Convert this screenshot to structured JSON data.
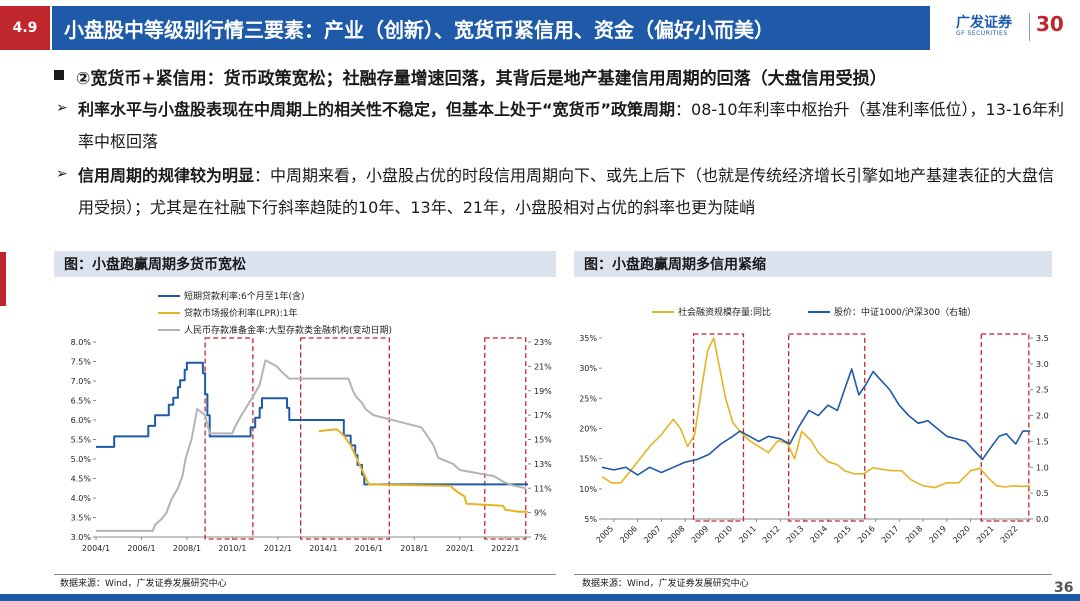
{
  "header": {
    "section_num": "4.9",
    "title": "小盘股中等级别行情三要素：产业（创新）、宽货币紧信用、资金（偏好小而美）",
    "logo_text": "广发证券",
    "logo_sub": "GF SECURITIES",
    "logo_30": "30"
  },
  "section": {
    "heading": "②宽货币+紧信用：货币政策宽松；社融存量增速回落，其背后是地产基建信用周期的回落（大盘信用受损）",
    "p1_bold": "利率水平与小盘股表现在中周期上的相关性不稳定，但基本上处于“宽货币”政策周期",
    "p1_rest": "：08-10年利率中枢抬升（基准利率低位），13-16年利率中枢回落",
    "p2_bold": "信用周期的规律较为明显",
    "p2_rest": "：中周期来看，小盘股占优的时段信用周期向下、或先上后下（也就是传统经济增长引擎如地产基建表征的大盘信用受损）；尤其是在社融下行斜率趋陡的10年、13年、21年，小盘股相对占优的斜率也更为陡峭"
  },
  "left_panel": {
    "title": "图：小盘跑赢周期多货币宽松",
    "source": "数据来源：Wind，广发证券发展研究中心"
  },
  "right_panel": {
    "title": "图：小盘跑赢周期多信用紧缩",
    "source": "数据来源：Wind，广发证券发展研究中心"
  },
  "page_number": "36",
  "colors": {
    "blue": "#1e5aa8",
    "gold": "#e6b422",
    "gray": "#b3b3b3",
    "red": "#c0272d"
  },
  "chart_data": [
    {
      "type": "line",
      "title": "",
      "legend": [
        "短期贷款利率:6个月至1年(含)",
        "贷款市场报价利率(LPR):1年",
        "人民币存款准备金率:大型存款类金融机构(变动日期)"
      ],
      "legend_placement": "top-left",
      "left_axis": {
        "min": 3.0,
        "max": 8.0,
        "ticks": [
          "3.0%",
          "3.5%",
          "4.0%",
          "4.5%",
          "5.0%",
          "5.5%",
          "6.0%",
          "6.5%",
          "7.0%",
          "7.5%",
          "8.0%"
        ]
      },
      "right_axis": {
        "min": 7,
        "max": 23,
        "ticks": [
          "7%",
          "9%",
          "11%",
          "13%",
          "15%",
          "17%",
          "19%",
          "21%",
          "23%"
        ]
      },
      "x_axis": {
        "min": 2004,
        "max": 2023,
        "ticks": [
          "2004/1",
          "2006/1",
          "2008/1",
          "2010/1",
          "2012/1",
          "2014/1",
          "2016/1",
          "2018/1",
          "2020/1",
          "2022/1"
        ]
      },
      "highlight_periods": [
        [
          2008.8,
          2010.9
        ],
        [
          2013.0,
          2016.9
        ],
        [
          2021.1,
          2022.9
        ]
      ],
      "series": [
        {
          "name": "短期贷款利率:6个月至1年(含)",
          "axis": "left",
          "color": "#1e5aa8",
          "points": [
            [
              2004.0,
              5.31
            ],
            [
              2004.8,
              5.31
            ],
            [
              2004.8,
              5.58
            ],
            [
              2006.3,
              5.58
            ],
            [
              2006.3,
              5.85
            ],
            [
              2006.6,
              5.85
            ],
            [
              2006.6,
              6.12
            ],
            [
              2007.2,
              6.12
            ],
            [
              2007.2,
              6.39
            ],
            [
              2007.4,
              6.39
            ],
            [
              2007.4,
              6.57
            ],
            [
              2007.6,
              6.57
            ],
            [
              2007.6,
              6.84
            ],
            [
              2007.7,
              6.84
            ],
            [
              2007.7,
              7.02
            ],
            [
              2007.9,
              7.02
            ],
            [
              2007.9,
              7.29
            ],
            [
              2008.0,
              7.29
            ],
            [
              2008.0,
              7.47
            ],
            [
              2008.7,
              7.47
            ],
            [
              2008.7,
              7.2
            ],
            [
              2008.8,
              7.2
            ],
            [
              2008.8,
              6.66
            ],
            [
              2008.9,
              6.66
            ],
            [
              2008.9,
              6.12
            ],
            [
              2009.0,
              6.12
            ],
            [
              2009.0,
              5.58
            ],
            [
              2010.8,
              5.58
            ],
            [
              2010.8,
              5.81
            ],
            [
              2011.0,
              5.81
            ],
            [
              2011.0,
              6.06
            ],
            [
              2011.2,
              6.06
            ],
            [
              2011.2,
              6.31
            ],
            [
              2011.3,
              6.31
            ],
            [
              2011.3,
              6.56
            ],
            [
              2012.4,
              6.56
            ],
            [
              2012.4,
              6.31
            ],
            [
              2012.5,
              6.31
            ],
            [
              2012.5,
              6.0
            ],
            [
              2014.9,
              6.0
            ],
            [
              2014.9,
              5.6
            ],
            [
              2015.2,
              5.6
            ],
            [
              2015.2,
              5.35
            ],
            [
              2015.4,
              5.35
            ],
            [
              2015.4,
              5.1
            ],
            [
              2015.5,
              5.1
            ],
            [
              2015.5,
              4.85
            ],
            [
              2015.7,
              4.85
            ],
            [
              2015.7,
              4.6
            ],
            [
              2015.8,
              4.6
            ],
            [
              2015.8,
              4.35
            ],
            [
              2023.0,
              4.35
            ]
          ]
        },
        {
          "name": "贷款市场报价利率(LPR):1年",
          "axis": "left",
          "color": "#e6b422",
          "points": [
            [
              2013.8,
              5.71
            ],
            [
              2014.2,
              5.74
            ],
            [
              2014.6,
              5.76
            ],
            [
              2014.9,
              5.6
            ],
            [
              2015.2,
              5.35
            ],
            [
              2015.4,
              5.1
            ],
            [
              2015.6,
              4.85
            ],
            [
              2015.8,
              4.6
            ],
            [
              2016.0,
              4.35
            ],
            [
              2019.6,
              4.31
            ],
            [
              2019.7,
              4.25
            ],
            [
              2019.9,
              4.15
            ],
            [
              2020.2,
              4.05
            ],
            [
              2020.3,
              3.85
            ],
            [
              2021.9,
              3.8
            ],
            [
              2022.0,
              3.7
            ],
            [
              2022.6,
              3.65
            ],
            [
              2023.0,
              3.65
            ]
          ]
        },
        {
          "name": "人民币存款准备金率:大型存款类金融机构(变动日期)",
          "axis": "right",
          "color": "#b3b3b3",
          "points": [
            [
              2004.0,
              7.5
            ],
            [
              2006.5,
              7.5
            ],
            [
              2006.6,
              8.0
            ],
            [
              2006.9,
              8.5
            ],
            [
              2007.1,
              9.0
            ],
            [
              2007.3,
              10.0
            ],
            [
              2007.6,
              11.0
            ],
            [
              2007.8,
              12.0
            ],
            [
              2007.95,
              13.5
            ],
            [
              2008.2,
              15.0
            ],
            [
              2008.45,
              17.5
            ],
            [
              2008.8,
              17.0
            ],
            [
              2009.0,
              15.5
            ],
            [
              2010.0,
              15.5
            ],
            [
              2010.1,
              16.0
            ],
            [
              2010.4,
              17.0
            ],
            [
              2010.9,
              18.5
            ],
            [
              2011.2,
              19.5
            ],
            [
              2011.45,
              21.5
            ],
            [
              2011.95,
              21.0
            ],
            [
              2012.2,
              20.5
            ],
            [
              2012.5,
              20.0
            ],
            [
              2015.1,
              20.0
            ],
            [
              2015.3,
              19.0
            ],
            [
              2015.45,
              18.5
            ],
            [
              2015.7,
              18.0
            ],
            [
              2015.85,
              17.5
            ],
            [
              2016.2,
              17.0
            ],
            [
              2018.3,
              16.0
            ],
            [
              2018.5,
              15.5
            ],
            [
              2018.85,
              14.5
            ],
            [
              2019.05,
              13.5
            ],
            [
              2019.7,
              13.0
            ],
            [
              2020.0,
              12.5
            ],
            [
              2021.5,
              12.0
            ],
            [
              2021.95,
              11.5
            ],
            [
              2022.3,
              11.25
            ],
            [
              2022.9,
              11.0
            ]
          ]
        }
      ]
    },
    {
      "type": "line",
      "title": "",
      "legend": [
        "社会融资规模存量:同比",
        "股价：中证1000/沪深300（右轴）"
      ],
      "legend_placement": "top",
      "left_axis": {
        "min": 5,
        "max": 35,
        "ticks": [
          "5%",
          "10%",
          "15%",
          "20%",
          "25%",
          "30%",
          "35%"
        ]
      },
      "right_axis": {
        "min": 0.0,
        "max": 3.5,
        "ticks": [
          "0.0",
          "0.5",
          "1.0",
          "1.5",
          "2.0",
          "2.5",
          "3.0",
          "3.5"
        ]
      },
      "x_axis": {
        "min": 2005,
        "max": 2023,
        "ticks": [
          "2005",
          "2006",
          "2007",
          "2008",
          "2009",
          "2010",
          "2011",
          "2012",
          "2013",
          "2014",
          "2015",
          "2016",
          "2017",
          "2018",
          "2019",
          "2020",
          "2021",
          "2022"
        ]
      },
      "highlight_periods": [
        [
          2008.85,
          2010.95
        ],
        [
          2012.85,
          2016.05
        ],
        [
          2020.95,
          2022.95
        ]
      ],
      "series": [
        {
          "name": "社会融资规模存量:同比",
          "axis": "left",
          "color": "#e6b422",
          "points": [
            [
              2005.0,
              12
            ],
            [
              2005.4,
              11
            ],
            [
              2005.8,
              11
            ],
            [
              2006.2,
              13
            ],
            [
              2006.6,
              15
            ],
            [
              2007.0,
              17
            ],
            [
              2007.5,
              19
            ],
            [
              2008.0,
              21.5
            ],
            [
              2008.3,
              20
            ],
            [
              2008.6,
              17
            ],
            [
              2008.9,
              19
            ],
            [
              2009.2,
              27
            ],
            [
              2009.45,
              33
            ],
            [
              2009.7,
              35
            ],
            [
              2009.95,
              30
            ],
            [
              2010.2,
              25
            ],
            [
              2010.5,
              21
            ],
            [
              2010.8,
              19.5
            ],
            [
              2011.2,
              18
            ],
            [
              2011.6,
              17
            ],
            [
              2012.0,
              16
            ],
            [
              2012.4,
              18
            ],
            [
              2012.8,
              17.5
            ],
            [
              2013.1,
              15
            ],
            [
              2013.4,
              19.5
            ],
            [
              2013.8,
              18
            ],
            [
              2014.1,
              16
            ],
            [
              2014.5,
              14.5
            ],
            [
              2014.9,
              14
            ],
            [
              2015.2,
              13
            ],
            [
              2015.6,
              12.5
            ],
            [
              2016.0,
              12.5
            ],
            [
              2016.4,
              13.5
            ],
            [
              2016.8,
              13.2
            ],
            [
              2017.2,
              13
            ],
            [
              2017.6,
              13
            ],
            [
              2018.0,
              11.5
            ],
            [
              2018.5,
              10.5
            ],
            [
              2019.0,
              10.2
            ],
            [
              2019.5,
              11
            ],
            [
              2020.0,
              11
            ],
            [
              2020.5,
              13
            ],
            [
              2020.9,
              13.4
            ],
            [
              2021.2,
              12
            ],
            [
              2021.6,
              10.5
            ],
            [
              2021.95,
              10.3
            ],
            [
              2022.3,
              10.5
            ],
            [
              2022.7,
              10.4
            ],
            [
              2023.0,
              10.5
            ]
          ]
        },
        {
          "name": "股价：中证1000/沪深300（右轴）",
          "axis": "right",
          "color": "#1e5aa8",
          "points": [
            [
              2005.0,
              1.0
            ],
            [
              2005.5,
              0.95
            ],
            [
              2006.0,
              1.0
            ],
            [
              2006.5,
              0.85
            ],
            [
              2007.0,
              1.0
            ],
            [
              2007.5,
              0.9
            ],
            [
              2008.0,
              1.0
            ],
            [
              2008.5,
              1.1
            ],
            [
              2009.0,
              1.15
            ],
            [
              2009.5,
              1.25
            ],
            [
              2010.0,
              1.45
            ],
            [
              2010.5,
              1.6
            ],
            [
              2010.8,
              1.7
            ],
            [
              2011.2,
              1.6
            ],
            [
              2011.6,
              1.5
            ],
            [
              2012.0,
              1.6
            ],
            [
              2012.5,
              1.55
            ],
            [
              2012.9,
              1.45
            ],
            [
              2013.3,
              1.8
            ],
            [
              2013.7,
              2.1
            ],
            [
              2014.1,
              2.0
            ],
            [
              2014.5,
              2.2
            ],
            [
              2014.9,
              2.1
            ],
            [
              2015.2,
              2.5
            ],
            [
              2015.5,
              2.9
            ],
            [
              2015.8,
              2.4
            ],
            [
              2016.1,
              2.6
            ],
            [
              2016.4,
              2.85
            ],
            [
              2016.7,
              2.7
            ],
            [
              2017.1,
              2.5
            ],
            [
              2017.5,
              2.2
            ],
            [
              2017.9,
              2.0
            ],
            [
              2018.3,
              1.85
            ],
            [
              2018.7,
              1.9
            ],
            [
              2019.1,
              1.75
            ],
            [
              2019.5,
              1.6
            ],
            [
              2019.9,
              1.55
            ],
            [
              2020.3,
              1.5
            ],
            [
              2020.7,
              1.3
            ],
            [
              2021.0,
              1.15
            ],
            [
              2021.3,
              1.35
            ],
            [
              2021.7,
              1.6
            ],
            [
              2022.0,
              1.65
            ],
            [
              2022.4,
              1.45
            ],
            [
              2022.7,
              1.7
            ],
            [
              2023.0,
              1.7
            ]
          ]
        }
      ]
    }
  ]
}
